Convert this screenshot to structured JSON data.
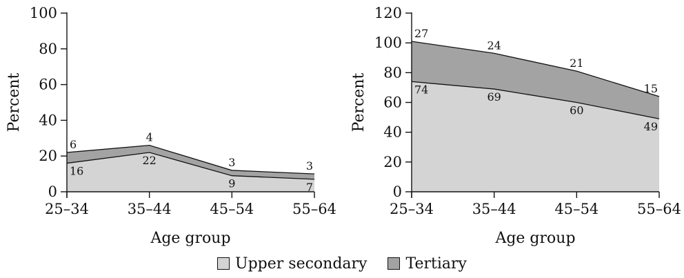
{
  "colors": {
    "upper_secondary": "#d4d4d4",
    "tertiary": "#a3a3a3",
    "line": "#111111"
  },
  "legend": [
    {
      "label": "Upper secondary",
      "color": "#d4d4d4"
    },
    {
      "label": "Tertiary",
      "color": "#a3a3a3"
    }
  ],
  "chart_data": [
    {
      "type": "area",
      "stacked": true,
      "categories": [
        "25–34",
        "35–44",
        "45–54",
        "55–64"
      ],
      "xlabel": "Age group",
      "ylabel": "Percent",
      "ylim": [
        0,
        100
      ],
      "yticks": [
        0,
        20,
        40,
        60,
        80,
        100
      ],
      "series": [
        {
          "name": "Upper secondary",
          "values": [
            16,
            22,
            9,
            7
          ]
        },
        {
          "name": "Tertiary",
          "values": [
            6,
            4,
            3,
            3
          ]
        }
      ],
      "legend": "bottom-center",
      "grid": false
    },
    {
      "type": "area",
      "stacked": true,
      "categories": [
        "25–34",
        "35–44",
        "45–54",
        "55–64"
      ],
      "xlabel": "Age group",
      "ylabel": "Percent",
      "ylim": [
        0,
        120
      ],
      "yticks": [
        0,
        20,
        40,
        60,
        80,
        100,
        120
      ],
      "series": [
        {
          "name": "Upper secondary",
          "values": [
            74,
            69,
            60,
            49
          ]
        },
        {
          "name": "Tertiary",
          "values": [
            27,
            24,
            21,
            15
          ]
        }
      ],
      "legend": "bottom-center",
      "grid": false
    }
  ]
}
